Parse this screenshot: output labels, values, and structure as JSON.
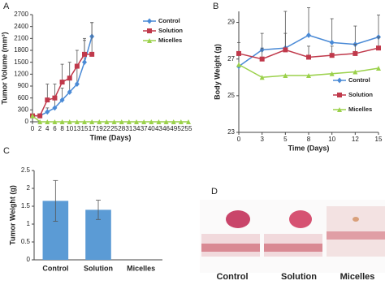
{
  "chart_data": [
    {
      "type": "line",
      "panel": "A",
      "x_label": "Time (Days)",
      "y_label": "Tumor Volume (mm³)",
      "categories": [
        "0",
        "2",
        "4",
        "6",
        "8",
        "10",
        "13",
        "15",
        "17",
        "19",
        "22",
        "25",
        "28",
        "31",
        "34",
        "37",
        "40",
        "43",
        "46",
        "49",
        "52",
        "55"
      ],
      "ylim": [
        0,
        2700
      ],
      "yticks": [
        0,
        300,
        600,
        900,
        1200,
        1500,
        1800,
        2100,
        2400,
        2700
      ],
      "legend": "top-right",
      "series": [
        {
          "name": "Control",
          "color": "#4a8ad6",
          "marker": "diamond",
          "values": [
            150,
            150,
            250,
            350,
            550,
            750,
            950,
            1500,
            2150,
            null,
            null,
            null,
            null,
            null,
            null,
            null,
            null,
            null,
            null,
            null,
            null,
            null
          ],
          "errors": [
            null,
            null,
            100,
            200,
            300,
            400,
            500,
            600,
            350,
            null,
            null,
            null,
            null,
            null,
            null,
            null,
            null,
            null,
            null,
            null,
            null,
            null
          ]
        },
        {
          "name": "Solution",
          "color": "#c0394b",
          "marker": "square",
          "values": [
            150,
            150,
            550,
            600,
            1000,
            1100,
            1400,
            1700,
            1700,
            null,
            null,
            null,
            null,
            null,
            null,
            null,
            null,
            null,
            null,
            null,
            null,
            null
          ],
          "errors": [
            null,
            null,
            400,
            350,
            450,
            400,
            400,
            350,
            800,
            null,
            null,
            null,
            null,
            null,
            null,
            null,
            null,
            null,
            null,
            null,
            null,
            null
          ]
        },
        {
          "name": "Micelles",
          "color": "#9bd14b",
          "marker": "triangle",
          "values": [
            150,
            0,
            0,
            0,
            0,
            0,
            0,
            0,
            0,
            0,
            0,
            0,
            0,
            0,
            0,
            0,
            0,
            0,
            0,
            0,
            0,
            0
          ]
        }
      ]
    },
    {
      "type": "line",
      "panel": "B",
      "x_label": "Time (Days)",
      "y_label": "Body Weight (g)",
      "categories": [
        "0",
        "3",
        "5",
        "8",
        "10",
        "12",
        "15"
      ],
      "ylim": [
        23,
        29.6
      ],
      "yticks": [
        23,
        25,
        27,
        29
      ],
      "legend": "bottom-right",
      "series": [
        {
          "name": "Control",
          "color": "#4a8ad6",
          "marker": "diamond",
          "values": [
            26.6,
            27.5,
            27.6,
            28.3,
            27.9,
            27.8,
            28.2
          ],
          "errors": [
            0.8,
            0.9,
            2,
            1.5,
            1.3,
            1,
            1.2
          ]
        },
        {
          "name": "Solution",
          "color": "#c0394b",
          "marker": "square",
          "values": [
            27.3,
            27,
            27.5,
            27.1,
            27.2,
            27.3,
            27.6
          ],
          "errors": [
            0.6,
            0.6,
            0.9,
            0.6,
            0.5,
            0.5,
            0.6
          ]
        },
        {
          "name": "Micelles",
          "color": "#9bd14b",
          "marker": "triangle",
          "values": [
            26.7,
            26,
            26.1,
            26.1,
            26.2,
            26.3,
            26.5
          ]
        }
      ]
    },
    {
      "type": "bar",
      "panel": "C",
      "y_label": "Tumor Weight (g)",
      "categories": [
        "Control",
        "Solution",
        "Micelles"
      ],
      "values": [
        1.65,
        1.4,
        0
      ],
      "errors": [
        0.57,
        0.27,
        null
      ],
      "color": "#5b9bd5",
      "ylim": [
        0,
        2.5
      ],
      "yticks": [
        0,
        0.5,
        1,
        1.5,
        2,
        2.5
      ]
    }
  ],
  "photo": {
    "panel": "D",
    "labels": [
      "Control",
      "Solution",
      "Micelles"
    ]
  }
}
